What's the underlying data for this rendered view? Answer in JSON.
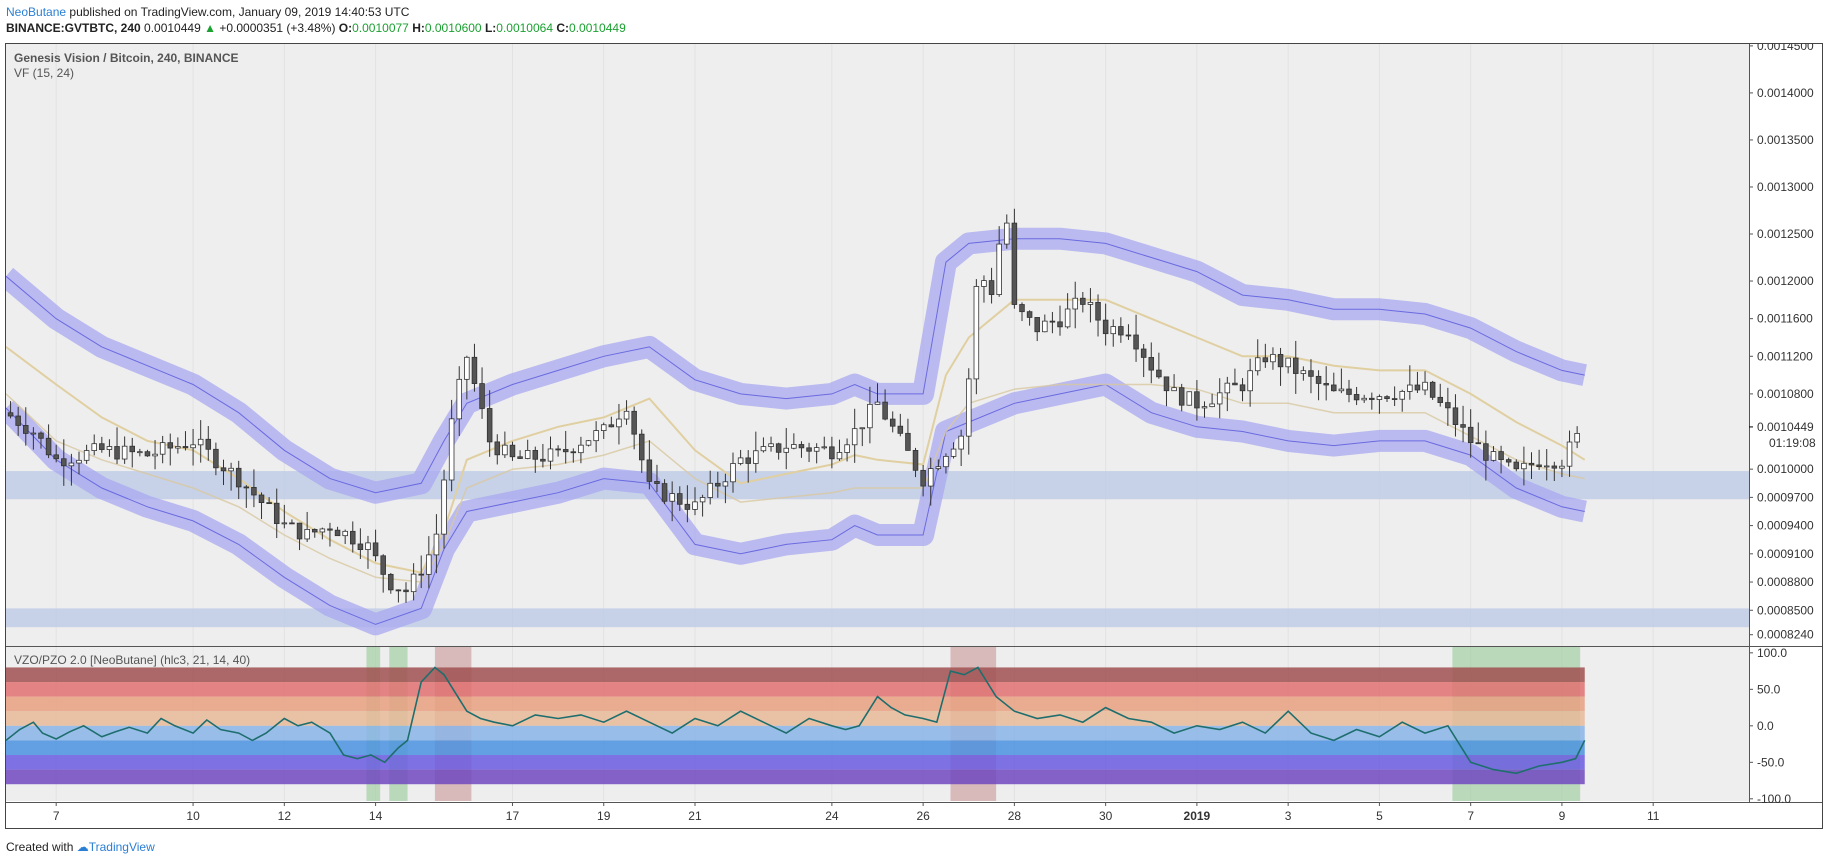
{
  "header": {
    "author": "NeoButane",
    "published_text": "published on TradingView.com, January 09, 2019 14:40:53 UTC",
    "symbol": "BINANCE:GVTBTC, 240",
    "last": "0.0010449",
    "change": "+0.0000351 (+3.48%)",
    "o_label": "O:",
    "o_value": "0.0010077",
    "h_label": "H:",
    "h_value": "0.0010600",
    "l_label": "L:",
    "l_value": "0.0010064",
    "c_label": "C:",
    "c_value": "0.0010449"
  },
  "footer": {
    "created_with": "Created with",
    "brand": "TradingView"
  },
  "chart_data": [
    {
      "type": "candlestick",
      "title": "Genesis Vision / Bitcoin, 240, BINANCE",
      "indicator_label": "VF (15, 24)",
      "price_axis_ticks": [
        0.00145,
        0.0014,
        0.00135,
        0.0013,
        0.00125,
        0.0012,
        0.00116,
        0.00112,
        0.00108,
        0.001,
        0.00097,
        0.00094,
        0.00091,
        0.00088,
        0.00085,
        0.000824
      ],
      "price_axis_labels": [
        "0.0014500",
        "0.0014000",
        "0.0013500",
        "0.0013000",
        "0.0012500",
        "0.0012000",
        "0.0011600",
        "0.0011200",
        "0.0010800",
        "0.0010000",
        "0.0009700",
        "0.0009400",
        "0.0009100",
        "0.0008800",
        "0.0008500",
        "0.0008240"
      ],
      "current_price_label": "0.0010449",
      "countdown": "01:19:08",
      "ylim": [
        0.000812,
        0.001452
      ],
      "x_ticks": [
        "7",
        "10",
        "12",
        "14",
        "17",
        "19",
        "21",
        "24",
        "26",
        "28",
        "30",
        "2019",
        "3",
        "5",
        "7",
        "9",
        "11"
      ],
      "x_tick_days": [
        7,
        10,
        12,
        14,
        17,
        19,
        21,
        24,
        26,
        28,
        30,
        32,
        34,
        36,
        38,
        40,
        42
      ],
      "xlim_days": [
        5.9,
        44.1
      ],
      "support_zones": [
        [
          0.000968,
          0.000998
        ],
        [
          0.000832,
          0.000852
        ]
      ],
      "close_days": [
        5.9,
        6.5,
        7.0,
        8.0,
        9.0,
        10.0,
        10.5,
        11.0,
        12.0,
        12.5,
        13.0,
        13.8,
        14.3,
        14.7,
        15.3,
        15.7,
        16.0,
        16.5,
        17.0,
        18.0,
        18.5,
        19.0,
        19.5,
        20.0,
        20.5,
        21.0,
        22.0,
        23.0,
        24.0,
        24.5,
        25.0,
        25.5,
        26.0,
        26.5,
        26.9,
        27.2,
        27.5,
        27.8,
        28.0,
        28.5,
        29.0,
        29.5,
        30.0,
        30.5,
        31.0,
        31.5,
        32.0,
        33.0,
        33.5,
        34.0,
        35.0,
        36.0,
        37.0,
        37.5,
        38.0,
        38.5,
        39.0,
        39.5,
        40.0,
        40.5
      ],
      "close_values": [
        0.00106,
        0.00104,
        0.00101,
        0.00102,
        0.001015,
        0.00103,
        0.00101,
        0.00099,
        0.00094,
        0.00093,
        0.00094,
        0.00092,
        0.00088,
        0.00087,
        0.00092,
        0.00106,
        0.00112,
        0.00103,
        0.00101,
        0.001015,
        0.00103,
        0.00104,
        0.00107,
        0.00098,
        0.00097,
        0.00096,
        0.00101,
        0.001025,
        0.00102,
        0.00104,
        0.00107,
        0.00103,
        0.00099,
        0.00102,
        0.00104,
        0.00121,
        0.00119,
        0.00128,
        0.00117,
        0.00115,
        0.00116,
        0.00118,
        0.00115,
        0.00115,
        0.00111,
        0.00108,
        0.00107,
        0.00109,
        0.00112,
        0.00111,
        0.00108,
        0.00108,
        0.001085,
        0.00106,
        0.00103,
        0.00101,
        0.000995,
        0.00101,
        0.00101,
        0.0010449
      ],
      "vf_bands": {
        "days": [
          5.9,
          7,
          8,
          9,
          10,
          11,
          12,
          13,
          14,
          15,
          15.5,
          16,
          17,
          18,
          19,
          20,
          21,
          22,
          23,
          24,
          24.5,
          25,
          26,
          26.5,
          27,
          28,
          29,
          30,
          31,
          32,
          33,
          34,
          35,
          36,
          37,
          38,
          39,
          40,
          40.5
        ],
        "upper_outer": [
          0.001205,
          0.00116,
          0.00113,
          0.00111,
          0.00109,
          0.00106,
          0.00102,
          0.00099,
          0.000975,
          0.000985,
          0.00103,
          0.00107,
          0.00109,
          0.001105,
          0.00112,
          0.00113,
          0.001095,
          0.00108,
          0.001075,
          0.00108,
          0.00109,
          0.00108,
          0.00108,
          0.00122,
          0.00124,
          0.001245,
          0.001245,
          0.00124,
          0.001225,
          0.00121,
          0.001185,
          0.00118,
          0.00117,
          0.00117,
          0.001165,
          0.00115,
          0.001125,
          0.001105,
          0.0011
        ],
        "basis": [
          0.00113,
          0.00109,
          0.001055,
          0.00103,
          0.00102,
          0.00099,
          0.000955,
          0.000925,
          0.0009,
          0.00089,
          0.000935,
          0.00101,
          0.00103,
          0.001045,
          0.001055,
          0.001075,
          0.00102,
          0.000985,
          0.000995,
          0.001005,
          0.001015,
          0.00101,
          0.001005,
          0.0011,
          0.00114,
          0.00118,
          0.00118,
          0.00118,
          0.00116,
          0.00114,
          0.00112,
          0.00112,
          0.00111,
          0.001105,
          0.001105,
          0.00108,
          0.00105,
          0.001025,
          0.00101
        ],
        "lower_outer": [
          0.001065,
          0.00101,
          0.00098,
          0.00096,
          0.000945,
          0.00092,
          0.000885,
          0.000855,
          0.000835,
          0.000852,
          0.000915,
          0.000955,
          0.000965,
          0.000975,
          0.00099,
          0.000985,
          0.00092,
          0.00091,
          0.00092,
          0.000925,
          0.00094,
          0.00093,
          0.00093,
          0.00104,
          0.00105,
          0.00107,
          0.00108,
          0.00109,
          0.00106,
          0.001045,
          0.00104,
          0.00103,
          0.001025,
          0.00103,
          0.00103,
          0.001015,
          0.00098,
          0.00096,
          0.000955
        ],
        "ma_line": [
          0.00108,
          0.00103,
          0.00101,
          0.000995,
          0.00098,
          0.00096,
          0.00093,
          0.000905,
          0.000885,
          0.00088,
          0.00092,
          0.00098,
          0.001,
          0.001005,
          0.001015,
          0.00103,
          0.00099,
          0.000965,
          0.00097,
          0.000975,
          0.00098,
          0.00098,
          0.00098,
          0.00104,
          0.00107,
          0.001085,
          0.00109,
          0.00109,
          0.00109,
          0.001085,
          0.00107,
          0.00107,
          0.00106,
          0.00106,
          0.00106,
          0.001035,
          0.00101,
          0.000995,
          0.00099
        ]
      }
    },
    {
      "type": "line",
      "title": "VZO/PZO 2.0 [NeoButane] (hlc3, 21, 14, 40)",
      "axis_ticks": [
        100,
        50,
        0,
        -50,
        -100
      ],
      "axis_labels": [
        "100.0",
        "50.0",
        "0.0",
        "-50.0",
        "-100.0"
      ],
      "ylim": [
        -103,
        108
      ],
      "zones": [
        {
          "from": 60,
          "to": 80,
          "color": "#a05050"
        },
        {
          "from": 40,
          "to": 60,
          "color": "#e07070"
        },
        {
          "from": 20,
          "to": 40,
          "color": "#e8a080"
        },
        {
          "from": 0,
          "to": 20,
          "color": "#e8b898"
        },
        {
          "from": -20,
          "to": 0,
          "color": "#8ab4e8"
        },
        {
          "from": -40,
          "to": -20,
          "color": "#4a90e0"
        },
        {
          "from": -60,
          "to": -40,
          "color": "#6a5ae0"
        },
        {
          "from": -80,
          "to": -60,
          "color": "#7048c0"
        }
      ],
      "highlights": [
        {
          "from": 13.8,
          "to": 14.1,
          "color": "#90c890"
        },
        {
          "from": 14.3,
          "to": 14.7,
          "color": "#90c890"
        },
        {
          "from": 15.3,
          "to": 16.1,
          "color": "#c89090"
        },
        {
          "from": 26.6,
          "to": 27.6,
          "color": "#c89090"
        },
        {
          "from": 37.6,
          "to": 40.4,
          "color": "#90c890"
        }
      ],
      "days": [
        5.9,
        6.2,
        6.5,
        6.7,
        7.0,
        7.3,
        7.6,
        8.0,
        8.3,
        8.6,
        9.0,
        9.3,
        9.6,
        10.0,
        10.3,
        10.6,
        11.0,
        11.3,
        11.6,
        12.0,
        12.3,
        12.6,
        13.0,
        13.3,
        13.6,
        13.9,
        14.2,
        14.5,
        14.7,
        15.0,
        15.3,
        15.5,
        15.8,
        16.0,
        16.3,
        16.6,
        17.0,
        17.5,
        18.0,
        18.5,
        19.0,
        19.5,
        20.0,
        20.5,
        21.0,
        21.5,
        22.0,
        22.5,
        23.0,
        23.5,
        24.0,
        24.3,
        24.6,
        25.0,
        25.3,
        25.6,
        26.0,
        26.3,
        26.6,
        26.9,
        27.2,
        27.4,
        27.6,
        28.0,
        28.5,
        29.0,
        29.5,
        30.0,
        30.5,
        31.0,
        31.5,
        32.0,
        32.5,
        33.0,
        33.5,
        34.0,
        34.5,
        35.0,
        35.5,
        36.0,
        36.5,
        37.0,
        37.5,
        38.0,
        38.5,
        39.0,
        39.5,
        40.0,
        40.3,
        40.5
      ],
      "values": [
        -20,
        -5,
        5,
        -10,
        -18,
        -8,
        0,
        -15,
        -8,
        -2,
        -10,
        10,
        0,
        -10,
        8,
        -5,
        -10,
        -20,
        -10,
        10,
        0,
        5,
        -10,
        -40,
        -45,
        -40,
        -50,
        -30,
        -20,
        60,
        80,
        70,
        40,
        20,
        10,
        5,
        0,
        15,
        10,
        15,
        5,
        20,
        5,
        -10,
        10,
        0,
        20,
        5,
        -10,
        10,
        0,
        -5,
        0,
        40,
        25,
        15,
        10,
        5,
        75,
        70,
        80,
        60,
        40,
        20,
        10,
        15,
        5,
        25,
        10,
        5,
        -10,
        0,
        -5,
        5,
        -10,
        20,
        -10,
        -20,
        -5,
        -15,
        5,
        -10,
        0,
        -50,
        -60,
        -65,
        -55,
        -50,
        -45,
        -20
      ]
    }
  ]
}
